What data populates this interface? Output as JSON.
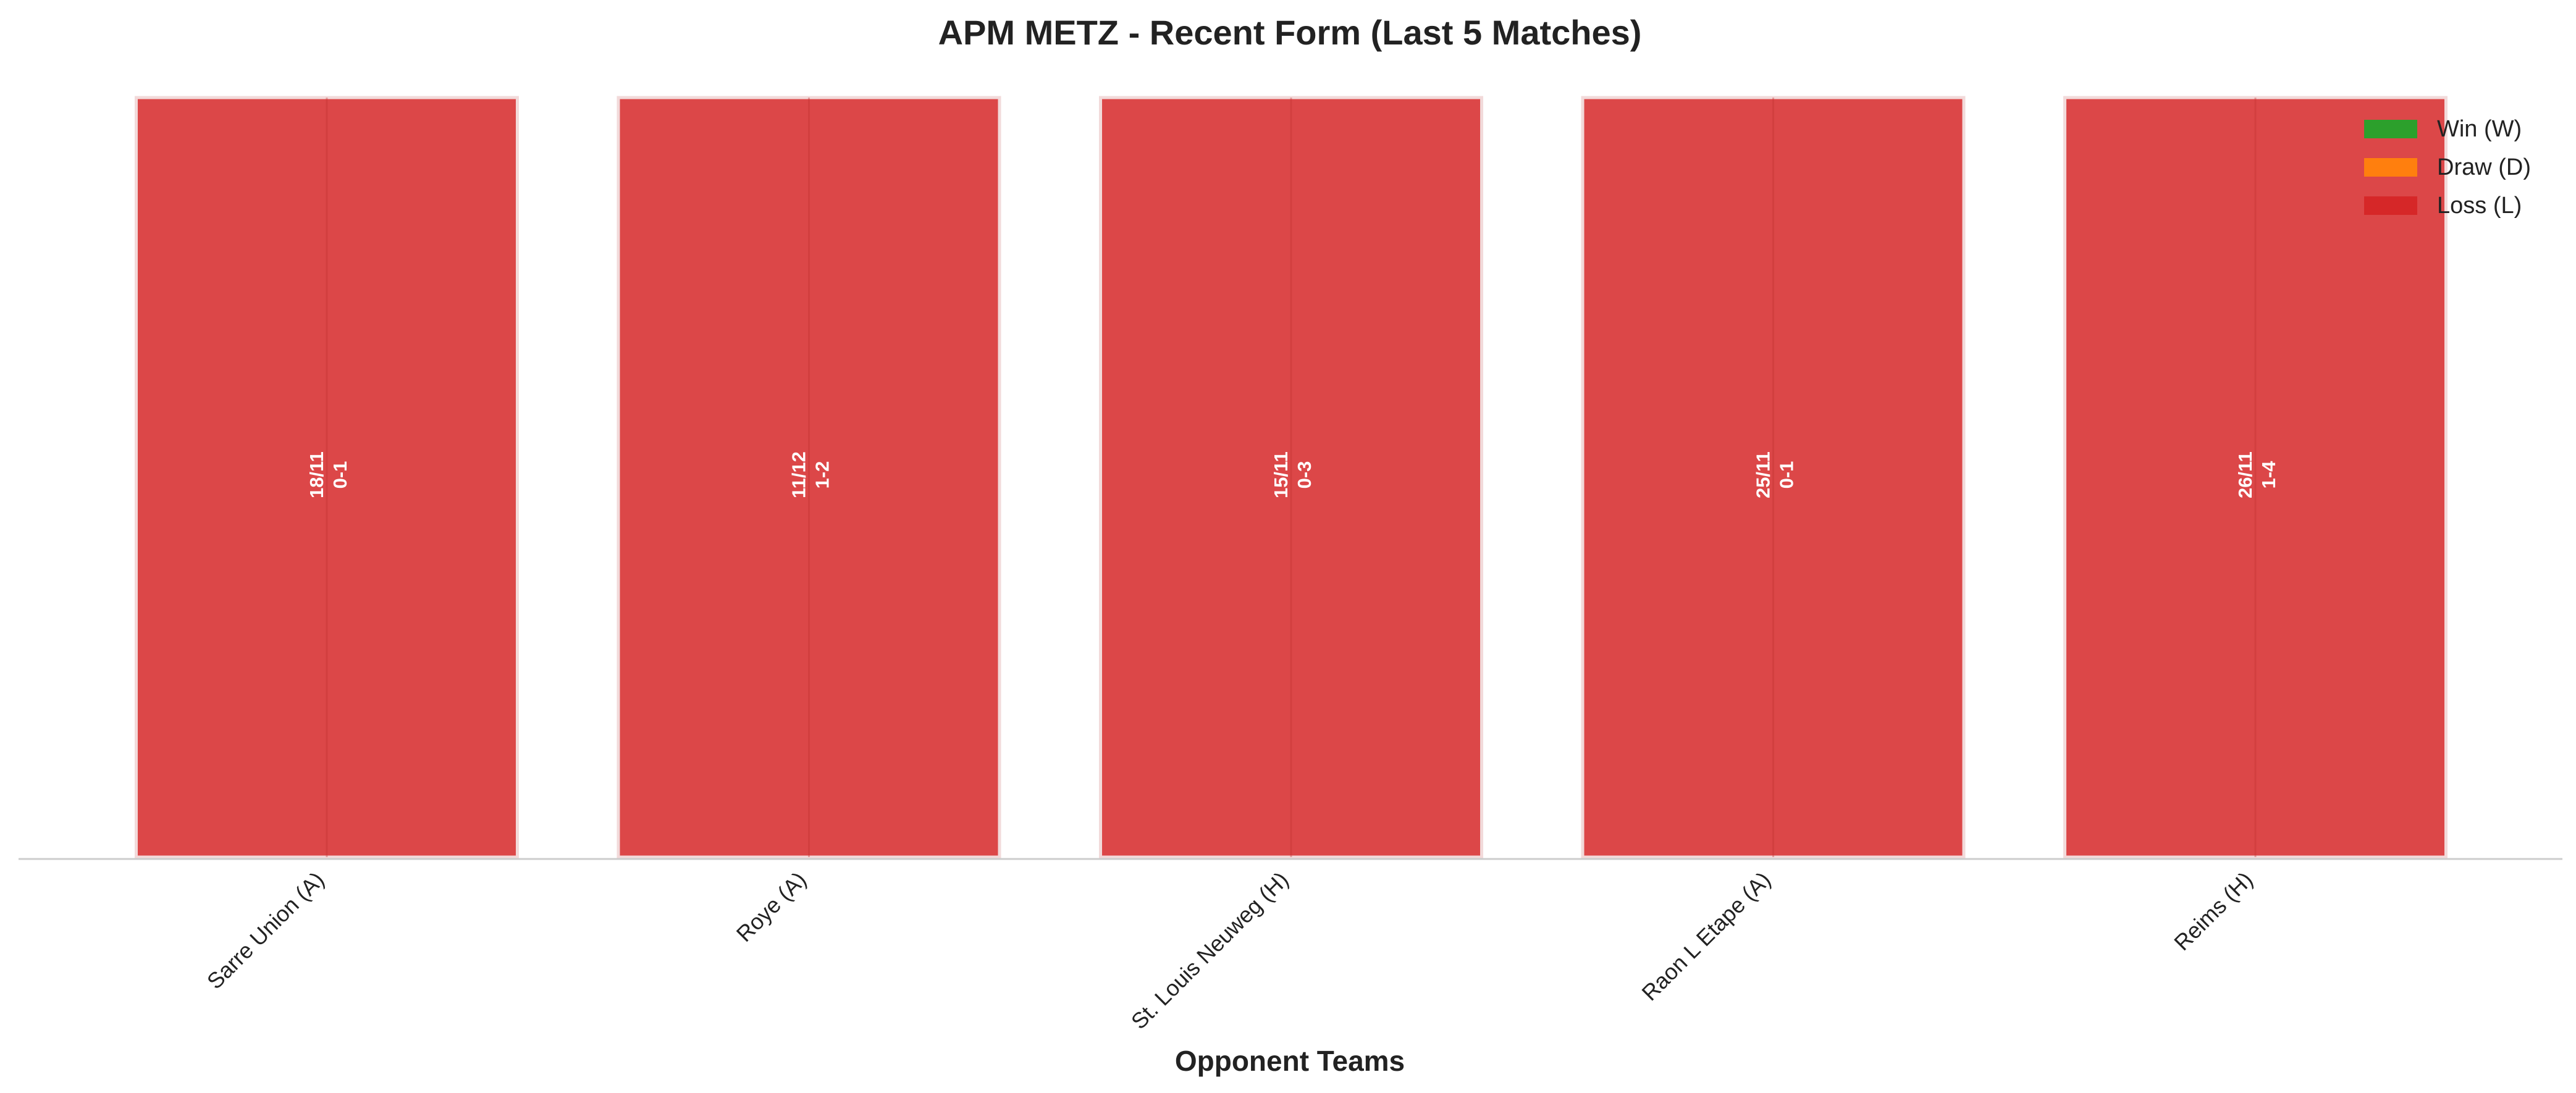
{
  "chart_data": {
    "type": "bar",
    "title": "APM METZ - Recent Form (Last 5 Matches)",
    "xlabel": "Opponent Teams",
    "ylabel": "",
    "ylim": [
      0,
      1
    ],
    "grid": false,
    "legend_position": "top-right",
    "categories": [
      "Sarre Union (A)",
      "Roye (A)",
      "St. Louis Neuweg (H)",
      "Raon L Etape (A)",
      "Reims (H)"
    ],
    "values": [
      1,
      1,
      1,
      1,
      1
    ],
    "results": [
      "L",
      "L",
      "L",
      "L",
      "L"
    ],
    "bar_labels": [
      {
        "date": "18/11",
        "score": "0-1"
      },
      {
        "date": "11/12",
        "score": "1-2"
      },
      {
        "date": "15/11",
        "score": "0-3"
      },
      {
        "date": "25/11",
        "score": "0-1"
      },
      {
        "date": "26/11",
        "score": "1-4"
      }
    ],
    "legend": [
      {
        "label": "Win (W)",
        "key": "W",
        "color": "#2ca02c"
      },
      {
        "label": "Draw (D)",
        "key": "D",
        "color": "#ff7f0e"
      },
      {
        "label": "Loss (L)",
        "key": "L",
        "color": "#d62728"
      }
    ],
    "colors": {
      "W": "#2ca02c",
      "D": "#ff7f0e",
      "L": "#d62728"
    }
  }
}
